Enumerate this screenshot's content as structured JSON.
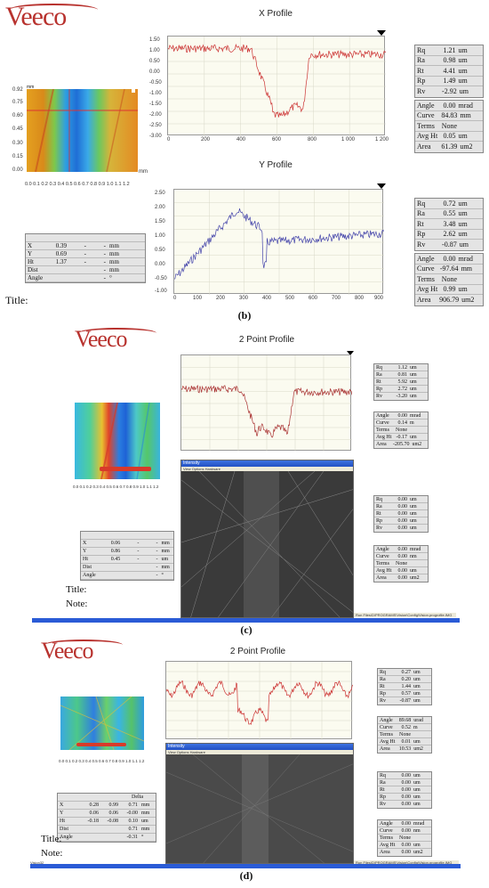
{
  "panel_b": {
    "logo": "Veeco",
    "x_profile_title": "X Profile",
    "y_profile_title": "Y Profile",
    "map_y_unit": "mm",
    "map_x_unit": "mm",
    "map_y_ticks": [
      "0.92",
      "0.75",
      "0.60",
      "0.45",
      "0.30",
      "0.15",
      "0.00"
    ],
    "map_x_ticks": "0.0 0.1 0.2 0.3 0.4 0.5 0.6 0.7 0.8 0.9 1.0 1.1 1.2",
    "x_profile_y_ticks": [
      "1.50",
      "1.00",
      "0.50",
      "0.00",
      "-0.50",
      "-1.00",
      "-1.50",
      "-2.00",
      "-2.50",
      "-3.00"
    ],
    "x_profile_x_ticks": [
      "0",
      "200",
      "400",
      "600",
      "800",
      "1 000",
      "1 200"
    ],
    "y_profile_y_ticks": [
      "2.50",
      "2.00",
      "1.50",
      "1.00",
      "0.50",
      "0.00",
      "-0.50",
      "-1.00"
    ],
    "y_profile_x_ticks": [
      "0",
      "100",
      "200",
      "300",
      "400",
      "500",
      "600",
      "700",
      "800",
      "900"
    ],
    "unit_um": "um",
    "x_stats": [
      {
        "k": "Rq",
        "v": "1.21",
        "u": "um"
      },
      {
        "k": "Ra",
        "v": "0.98",
        "u": "um"
      },
      {
        "k": "Rt",
        "v": "4.41",
        "u": "um"
      },
      {
        "k": "Rp",
        "v": "1.49",
        "u": "um"
      },
      {
        "k": "Rv",
        "v": "-2.92",
        "u": "um"
      }
    ],
    "x_stats2": [
      {
        "k": "Angle",
        "v": "0.00",
        "u": "mrad"
      },
      {
        "k": "Curve",
        "v": "84.83",
        "u": "mm"
      },
      {
        "k": "Terms",
        "v": "None",
        "u": ""
      },
      {
        "k": "Avg Ht",
        "v": "0.05",
        "u": "um"
      },
      {
        "k": "Area",
        "v": "61.39",
        "u": "um2"
      }
    ],
    "y_stats": [
      {
        "k": "Rq",
        "v": "0.72",
        "u": "um"
      },
      {
        "k": "Ra",
        "v": "0.55",
        "u": "um"
      },
      {
        "k": "Rt",
        "v": "3.48",
        "u": "um"
      },
      {
        "k": "Rp",
        "v": "2.62",
        "u": "um"
      },
      {
        "k": "Rv",
        "v": "-0.87",
        "u": "um"
      }
    ],
    "y_stats2": [
      {
        "k": "Angle",
        "v": "0.00",
        "u": "mrad"
      },
      {
        "k": "Curve",
        "v": "-97.64",
        "u": "mm"
      },
      {
        "k": "Terms",
        "v": "None",
        "u": ""
      },
      {
        "k": "Avg Ht",
        "v": "0.99",
        "u": "um"
      },
      {
        "k": "Area",
        "v": "906.79",
        "u": "um2"
      }
    ],
    "cursor": [
      {
        "k": "",
        "a": "",
        "b": "",
        "c": "",
        "u": ""
      },
      {
        "k": "X",
        "a": "0.39",
        "b": "-",
        "c": "-",
        "u": "mm"
      },
      {
        "k": "Y",
        "a": "0.69",
        "b": "-",
        "c": "-",
        "u": "mm"
      },
      {
        "k": "Ht",
        "a": "1.37",
        "b": "-",
        "c": "-",
        "u": "mm"
      },
      {
        "k": "Dist",
        "a": "",
        "b": "",
        "c": "-",
        "u": "mm"
      },
      {
        "k": "Angle",
        "a": "",
        "b": "",
        "c": "-",
        "u": "°"
      }
    ],
    "title_label": "Title:",
    "caption": "(b)"
  },
  "panel_c": {
    "logo": "Veeco",
    "profile_title": "2 Point Profile",
    "stats": [
      {
        "k": "Rq",
        "v": "1.12",
        "u": "um"
      },
      {
        "k": "Ra",
        "v": "0.81",
        "u": "um"
      },
      {
        "k": "Rt",
        "v": "5.92",
        "u": "um"
      },
      {
        "k": "Rp",
        "v": "2.72",
        "u": "um"
      },
      {
        "k": "Rv",
        "v": "-3.20",
        "u": "um"
      }
    ],
    "stats2": [
      {
        "k": "Angle",
        "v": "0.00",
        "u": "mrad"
      },
      {
        "k": "Curve",
        "v": "0.14",
        "u": "m"
      },
      {
        "k": "Terms",
        "v": "None",
        "u": ""
      },
      {
        "k": "Avg Ht",
        "v": "-0.17",
        "u": "um"
      },
      {
        "k": "Area",
        "v": "-205.70",
        "u": "um2"
      }
    ],
    "stats3": [
      {
        "k": "Rq",
        "v": "0.00",
        "u": "um"
      },
      {
        "k": "Ra",
        "v": "0.00",
        "u": "um"
      },
      {
        "k": "Rt",
        "v": "0.00",
        "u": "um"
      },
      {
        "k": "Rp",
        "v": "0.00",
        "u": "um"
      },
      {
        "k": "Rv",
        "v": "0.00",
        "u": "um"
      }
    ],
    "stats4": [
      {
        "k": "Angle",
        "v": "0.00",
        "u": "mrad"
      },
      {
        "k": "Curve",
        "v": "0.00",
        "u": "nm"
      },
      {
        "k": "Terms",
        "v": "None",
        "u": ""
      },
      {
        "k": "Avg Ht",
        "v": "0.00",
        "u": "um"
      },
      {
        "k": "Area",
        "v": "0.00",
        "u": "um2"
      }
    ],
    "cursor": [
      {
        "k": "",
        "a": "",
        "b": "",
        "c": "",
        "u": ""
      },
      {
        "k": "X",
        "a": "0.06",
        "b": "-",
        "c": "-",
        "u": "mm"
      },
      {
        "k": "Y",
        "a": "0.86",
        "b": "-",
        "c": "-",
        "u": "mm"
      },
      {
        "k": "Ht",
        "a": "0.45",
        "b": "-",
        "c": "-",
        "u": "um"
      },
      {
        "k": "Dist",
        "a": "",
        "b": "",
        "c": "-",
        "u": "mm"
      },
      {
        "k": "Angle",
        "a": "",
        "b": "",
        "c": "-",
        "u": "°"
      }
    ],
    "window_title": "Intensity",
    "window_menu": "View  Options  Hardware",
    "status_text": "Run Files\\D\\PROGRAMS\\Vision\\Config\\Vision.progrofile.IMG",
    "title_label": "Title:",
    "note_label": "Note:",
    "caption": "(c)"
  },
  "panel_d": {
    "logo": "Veeco",
    "profile_title": "2 Point Profile",
    "stats": [
      {
        "k": "Rq",
        "v": "0.27",
        "u": "um"
      },
      {
        "k": "Ra",
        "v": "0.20",
        "u": "um"
      },
      {
        "k": "Rt",
        "v": "1.44",
        "u": "um"
      },
      {
        "k": "Rp",
        "v": "0.57",
        "u": "um"
      },
      {
        "k": "Rv",
        "v": "-0.87",
        "u": "um"
      }
    ],
    "stats2": [
      {
        "k": "Angle",
        "v": "89.68",
        "u": "urad"
      },
      {
        "k": "Curve",
        "v": "0.52",
        "u": "m"
      },
      {
        "k": "Terms",
        "v": "None",
        "u": ""
      },
      {
        "k": "Avg Ht",
        "v": "0.01",
        "u": "um"
      },
      {
        "k": "Area",
        "v": "10.53",
        "u": "um2"
      }
    ],
    "stats3": [
      {
        "k": "Rq",
        "v": "0.00",
        "u": "um"
      },
      {
        "k": "Ra",
        "v": "0.00",
        "u": "um"
      },
      {
        "k": "Rt",
        "v": "0.00",
        "u": "um"
      },
      {
        "k": "Rp",
        "v": "0.00",
        "u": "um"
      },
      {
        "k": "Rv",
        "v": "0.00",
        "u": "um"
      }
    ],
    "stats4": [
      {
        "k": "Angle",
        "v": "0.00",
        "u": "mrad"
      },
      {
        "k": "Curve",
        "v": "0.00",
        "u": "nm"
      },
      {
        "k": "Terms",
        "v": "None",
        "u": ""
      },
      {
        "k": "Avg Ht",
        "v": "0.00",
        "u": "um"
      },
      {
        "k": "Area",
        "v": "0.00",
        "u": "um2"
      }
    ],
    "cursor_header": "Delta",
    "cursor": [
      {
        "k": "X",
        "a": "0.28",
        "b": "0.99",
        "c": "0.71",
        "u": "mm"
      },
      {
        "k": "Y",
        "a": "0.06",
        "b": "0.06",
        "c": "-0.00",
        "u": "mm"
      },
      {
        "k": "Ht",
        "a": "-0.18",
        "b": "-0.08",
        "c": "0.10",
        "u": "um"
      },
      {
        "k": "Dist",
        "a": "",
        "b": "",
        "c": "0.71",
        "u": "mm"
      },
      {
        "k": "Angle",
        "a": "",
        "b": "",
        "c": "-0.31",
        "u": "°"
      }
    ],
    "window_title": "Intensity",
    "window_menu": "View  Options  Hardware",
    "status_text": "Run Files\\D\\PROGRAMS\\Vision\\Config\\Vision.progrofile.IMG",
    "start_text": "Vision32",
    "title_label": "Title:",
    "note_label": "Note:",
    "caption": "(d)"
  }
}
